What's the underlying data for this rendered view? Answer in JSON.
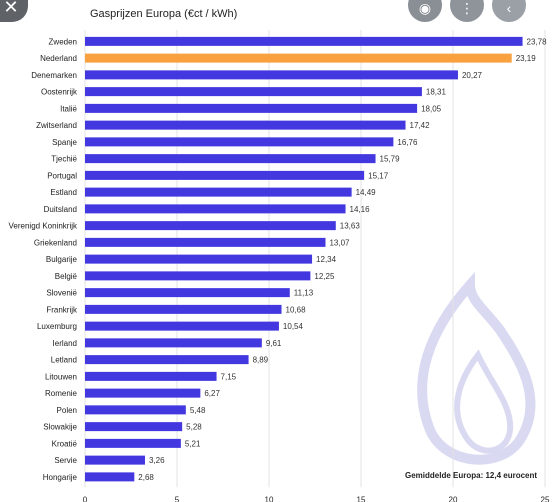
{
  "viewer": {
    "icons": [
      "close-icon",
      "lens-icon",
      "more-icon",
      "share-icon"
    ]
  },
  "chart_data": {
    "type": "bar",
    "orientation": "horizontal",
    "title": "Gasprijzen Europa (€ct / kWh)",
    "annotation": "Gemiddelde Europa: 12,4 eurocent",
    "categories": [
      "Zweden",
      "Nederland",
      "Denemarken",
      "Oostenrijk",
      "Italië",
      "Zwitserland",
      "Spanje",
      "Tjechië",
      "Portugal",
      "Estland",
      "Duitsland",
      "Verenigd Koninkrijk",
      "Griekenland",
      "Bulgarije",
      "België",
      "Slovenië",
      "Frankrijk",
      "Luxemburg",
      "Ierland",
      "Letland",
      "Litouwen",
      "Romenie",
      "Polen",
      "Slowakije",
      "Kroatië",
      "Servie",
      "Hongarije"
    ],
    "values": [
      23.78,
      23.19,
      20.27,
      18.31,
      18.05,
      17.42,
      16.76,
      15.79,
      15.17,
      14.49,
      14.16,
      13.63,
      13.07,
      12.34,
      12.25,
      11.13,
      10.68,
      10.54,
      9.61,
      8.89,
      7.15,
      6.27,
      5.48,
      5.28,
      5.21,
      3.26,
      2.68
    ],
    "value_labels": [
      "23,78",
      "23,19",
      "20,27",
      "18,31",
      "18,05",
      "17,42",
      "16,76",
      "15,79",
      "15,17",
      "14,49",
      "14,16",
      "13,63",
      "13,07",
      "12,34",
      "12,25",
      "11,13",
      "10,68",
      "10,54",
      "9,61",
      "8,89",
      "7,15",
      "6,27",
      "5,48",
      "5,28",
      "5,21",
      "3,26",
      "2,68"
    ],
    "highlight_index": 1,
    "xlim": [
      0,
      25
    ],
    "xticks": [
      0,
      5,
      10,
      15,
      20,
      25
    ],
    "grid": true,
    "colors": {
      "bar": "#4338e0",
      "highlight": "#f9a03f",
      "grid": "#e3e3e3",
      "text": "#222222",
      "watermark": "#d9d9f2"
    }
  }
}
